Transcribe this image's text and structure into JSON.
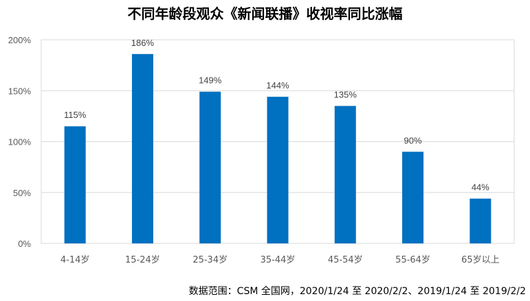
{
  "chart_data": {
    "type": "bar",
    "title": "不同年龄段观众《新闻联播》收视率同比涨幅",
    "categories": [
      "4-14岁",
      "15-24岁",
      "25-34岁",
      "35-44岁",
      "45-54岁",
      "55-64岁",
      "65岁以上"
    ],
    "values": [
      115,
      186,
      149,
      144,
      135,
      90,
      44
    ],
    "data_labels": [
      "115%",
      "186%",
      "149%",
      "144%",
      "135%",
      "90%",
      "44%"
    ],
    "y_ticks": [
      "0%",
      "50%",
      "100%",
      "150%",
      "200%"
    ],
    "y_tick_values": [
      0,
      50,
      100,
      150,
      200
    ],
    "ylim": [
      0,
      200
    ],
    "unit": "%",
    "grid": true,
    "legend": "none",
    "bar_color": "#0070c0"
  },
  "note": "数据范围：CSM 全国网，2020/1/24 至 2020/2/2、2019/1/24 至 2019/2/2"
}
